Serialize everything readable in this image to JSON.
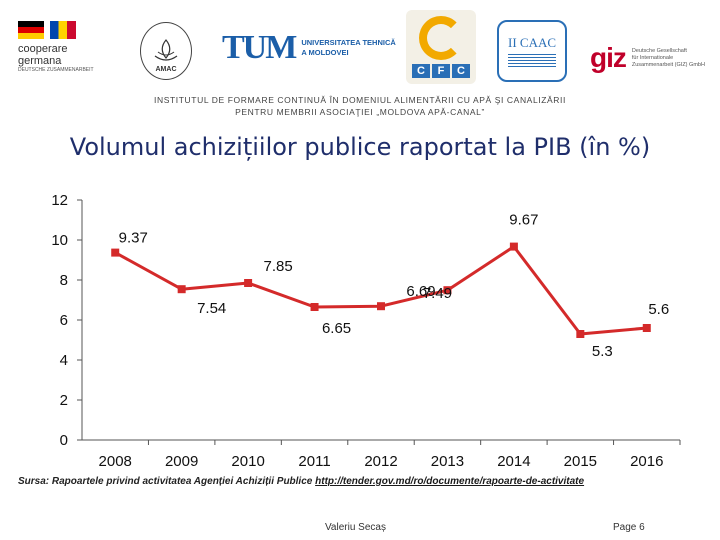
{
  "logos": {
    "coop_text_1": "cooperare",
    "coop_text_2": "germana",
    "coop_sub": "DEUTSCHE ZUSAMMENARBEIT",
    "amac": "AMAC",
    "utm_mark": "TUM",
    "utm_line1": "UNIVERSITATEA TEHNICĂ",
    "utm_line2": "A MOLDOVEI",
    "cfc": [
      "C",
      "F",
      "C"
    ],
    "ccaac": "II CAAC",
    "giz_mark": "giz",
    "giz_line1": "Deutsche Gesellschaft",
    "giz_line2": "für Internationale",
    "giz_line3": "Zusammenarbeit (GIZ) GmbH"
  },
  "header": {
    "institute_line1": "INSTITUTUL DE FORMARE CONTINUĂ ÎN DOMENIUL ALIMENTĂRII CU APĂ ŞI CANALIZĂRII",
    "institute_line2": "PENTRU MEMBRII ASOCIAŢIEI „MOLDOVA APĂ-CANAL”"
  },
  "chart_data": {
    "type": "line",
    "title": "Volumul achizițiilor publice raportat la PIB (în %)",
    "categories": [
      "2008",
      "2009",
      "2010",
      "2011",
      "2012",
      "2013",
      "2014",
      "2015",
      "2016"
    ],
    "series": [
      {
        "values": [
          9.37,
          7.54,
          7.85,
          6.65,
          6.69,
          7.49,
          9.67,
          5.3,
          5.6
        ],
        "color": "#d42a2a"
      }
    ],
    "data_labels": [
      "9.37",
      "7.54",
      "7.85",
      "6.65",
      "6.69",
      "7.49",
      "9.67",
      "5.3",
      "5.6"
    ],
    "yticks": [
      0,
      2,
      4,
      6,
      8,
      10,
      12
    ],
    "ylim": [
      0,
      12
    ],
    "grid": false,
    "legend": "none"
  },
  "footer": {
    "source_prefix": "Sursa: Rapoartele privind activitatea Agenției Achiziții Publice ",
    "source_url": "http://tender.gov.md/ro/documente/rapoarte-de-activitate",
    "author": "Valeriu Secaș",
    "page": "Page 6"
  }
}
